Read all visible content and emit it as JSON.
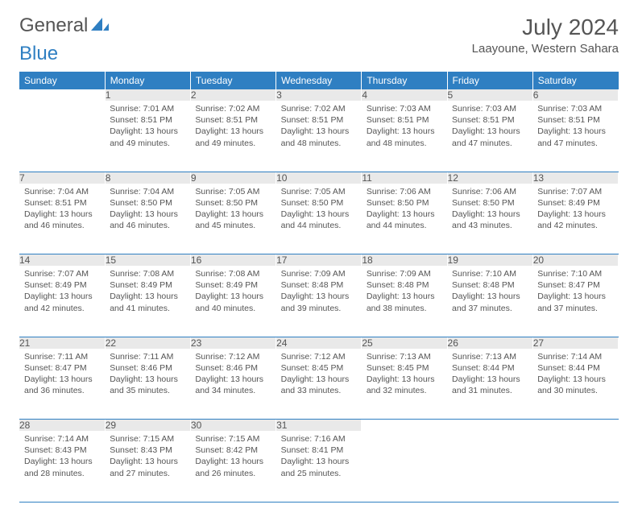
{
  "brand": {
    "part1": "General",
    "part2": "Blue"
  },
  "title": "July 2024",
  "location": "Laayoune, Western Sahara",
  "colors": {
    "header_bg": "#2f7fc2",
    "header_text": "#ffffff",
    "daynum_bg": "#e9e9e9",
    "text": "#555555",
    "rule": "#2f7fc2"
  },
  "daysOfWeek": [
    "Sunday",
    "Monday",
    "Tuesday",
    "Wednesday",
    "Thursday",
    "Friday",
    "Saturday"
  ],
  "startWeekday": 1,
  "numDays": 31,
  "entries": {
    "1": {
      "sunrise": "7:01 AM",
      "sunset": "8:51 PM",
      "daylight": "13 hours and 49 minutes."
    },
    "2": {
      "sunrise": "7:02 AM",
      "sunset": "8:51 PM",
      "daylight": "13 hours and 49 minutes."
    },
    "3": {
      "sunrise": "7:02 AM",
      "sunset": "8:51 PM",
      "daylight": "13 hours and 48 minutes."
    },
    "4": {
      "sunrise": "7:03 AM",
      "sunset": "8:51 PM",
      "daylight": "13 hours and 48 minutes."
    },
    "5": {
      "sunrise": "7:03 AM",
      "sunset": "8:51 PM",
      "daylight": "13 hours and 47 minutes."
    },
    "6": {
      "sunrise": "7:03 AM",
      "sunset": "8:51 PM",
      "daylight": "13 hours and 47 minutes."
    },
    "7": {
      "sunrise": "7:04 AM",
      "sunset": "8:51 PM",
      "daylight": "13 hours and 46 minutes."
    },
    "8": {
      "sunrise": "7:04 AM",
      "sunset": "8:50 PM",
      "daylight": "13 hours and 46 minutes."
    },
    "9": {
      "sunrise": "7:05 AM",
      "sunset": "8:50 PM",
      "daylight": "13 hours and 45 minutes."
    },
    "10": {
      "sunrise": "7:05 AM",
      "sunset": "8:50 PM",
      "daylight": "13 hours and 44 minutes."
    },
    "11": {
      "sunrise": "7:06 AM",
      "sunset": "8:50 PM",
      "daylight": "13 hours and 44 minutes."
    },
    "12": {
      "sunrise": "7:06 AM",
      "sunset": "8:50 PM",
      "daylight": "13 hours and 43 minutes."
    },
    "13": {
      "sunrise": "7:07 AM",
      "sunset": "8:49 PM",
      "daylight": "13 hours and 42 minutes."
    },
    "14": {
      "sunrise": "7:07 AM",
      "sunset": "8:49 PM",
      "daylight": "13 hours and 42 minutes."
    },
    "15": {
      "sunrise": "7:08 AM",
      "sunset": "8:49 PM",
      "daylight": "13 hours and 41 minutes."
    },
    "16": {
      "sunrise": "7:08 AM",
      "sunset": "8:49 PM",
      "daylight": "13 hours and 40 minutes."
    },
    "17": {
      "sunrise": "7:09 AM",
      "sunset": "8:48 PM",
      "daylight": "13 hours and 39 minutes."
    },
    "18": {
      "sunrise": "7:09 AM",
      "sunset": "8:48 PM",
      "daylight": "13 hours and 38 minutes."
    },
    "19": {
      "sunrise": "7:10 AM",
      "sunset": "8:48 PM",
      "daylight": "13 hours and 37 minutes."
    },
    "20": {
      "sunrise": "7:10 AM",
      "sunset": "8:47 PM",
      "daylight": "13 hours and 37 minutes."
    },
    "21": {
      "sunrise": "7:11 AM",
      "sunset": "8:47 PM",
      "daylight": "13 hours and 36 minutes."
    },
    "22": {
      "sunrise": "7:11 AM",
      "sunset": "8:46 PM",
      "daylight": "13 hours and 35 minutes."
    },
    "23": {
      "sunrise": "7:12 AM",
      "sunset": "8:46 PM",
      "daylight": "13 hours and 34 minutes."
    },
    "24": {
      "sunrise": "7:12 AM",
      "sunset": "8:45 PM",
      "daylight": "13 hours and 33 minutes."
    },
    "25": {
      "sunrise": "7:13 AM",
      "sunset": "8:45 PM",
      "daylight": "13 hours and 32 minutes."
    },
    "26": {
      "sunrise": "7:13 AM",
      "sunset": "8:44 PM",
      "daylight": "13 hours and 31 minutes."
    },
    "27": {
      "sunrise": "7:14 AM",
      "sunset": "8:44 PM",
      "daylight": "13 hours and 30 minutes."
    },
    "28": {
      "sunrise": "7:14 AM",
      "sunset": "8:43 PM",
      "daylight": "13 hours and 28 minutes."
    },
    "29": {
      "sunrise": "7:15 AM",
      "sunset": "8:43 PM",
      "daylight": "13 hours and 27 minutes."
    },
    "30": {
      "sunrise": "7:15 AM",
      "sunset": "8:42 PM",
      "daylight": "13 hours and 26 minutes."
    },
    "31": {
      "sunrise": "7:16 AM",
      "sunset": "8:41 PM",
      "daylight": "13 hours and 25 minutes."
    }
  },
  "labels": {
    "sunrise": "Sunrise: ",
    "sunset": "Sunset: ",
    "daylight": "Daylight: "
  }
}
